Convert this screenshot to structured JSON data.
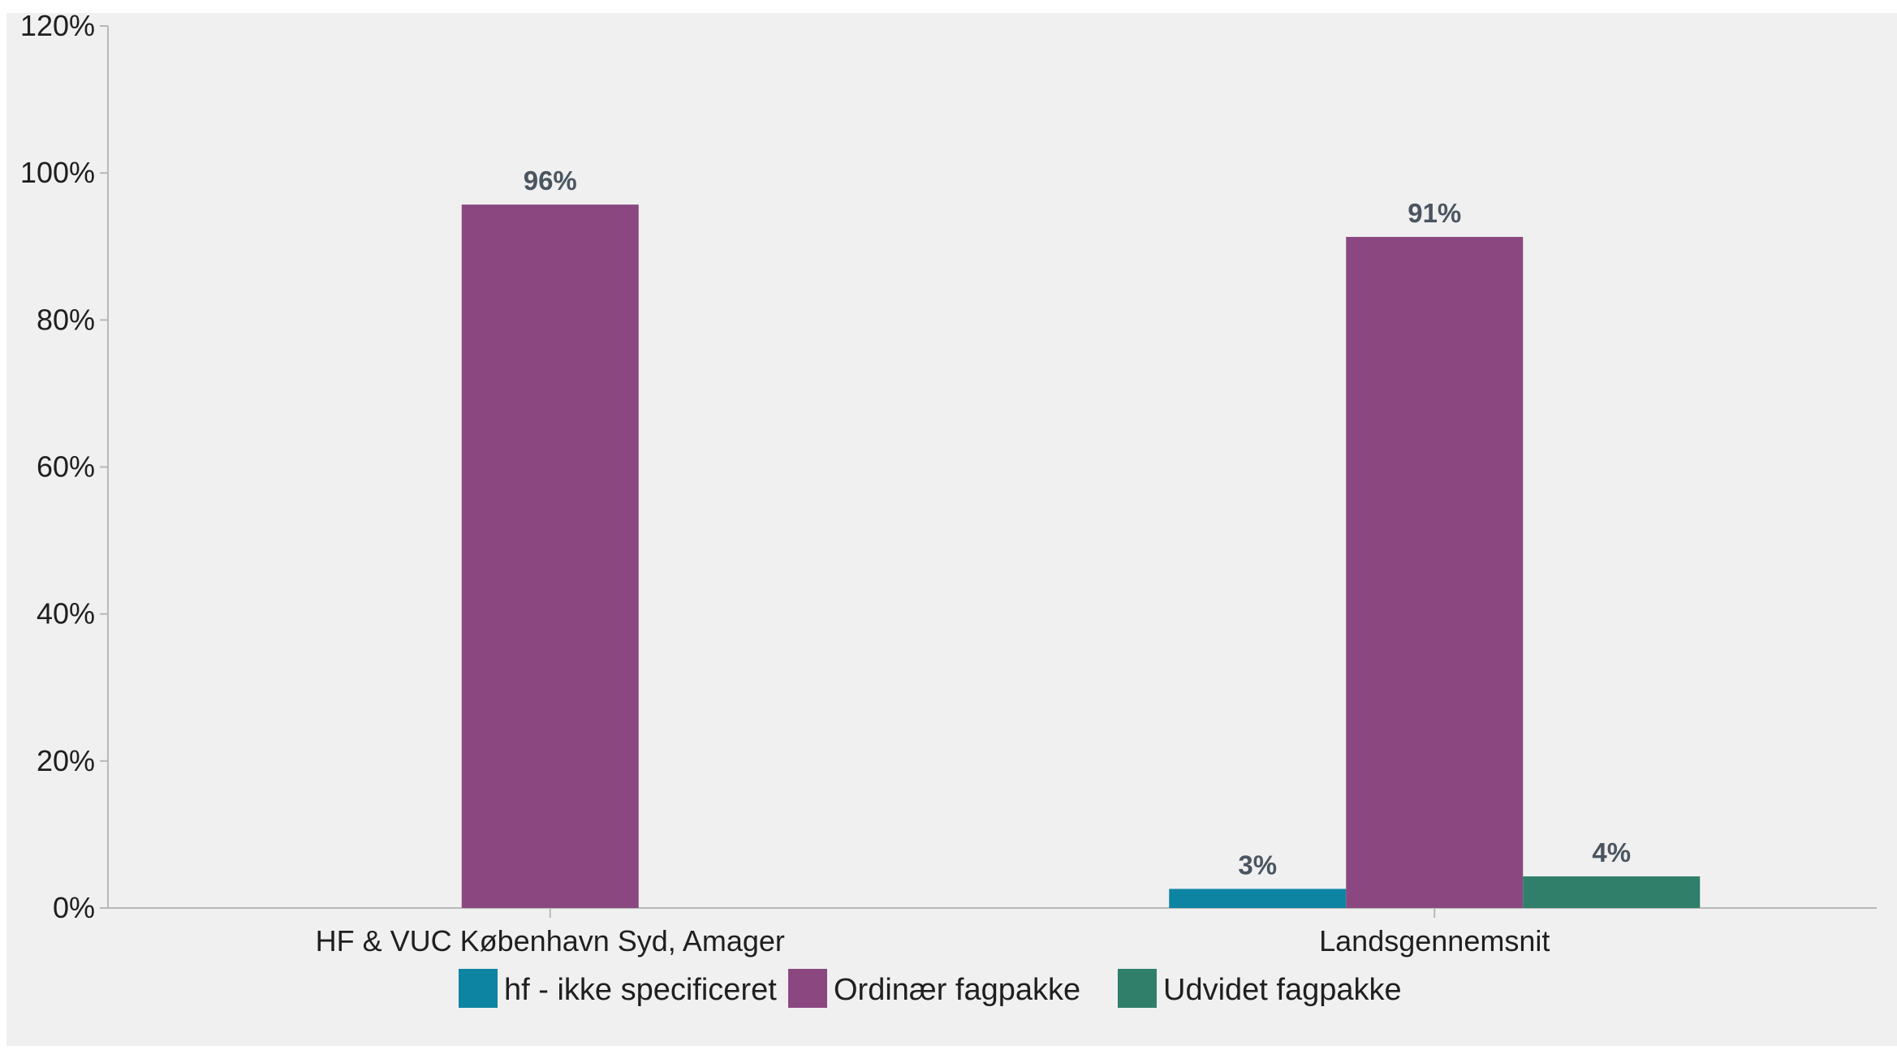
{
  "chart_data": {
    "type": "bar",
    "title": "",
    "xlabel": "",
    "ylabel": "",
    "ylim": [
      0,
      120
    ],
    "yticks": [
      0,
      20,
      40,
      60,
      80,
      100,
      120
    ],
    "ytick_labels": [
      "0%",
      "20%",
      "40%",
      "60%",
      "80%",
      "100%",
      "120%"
    ],
    "grid": false,
    "legend_position": "bottom",
    "categories": [
      "HF & VUC København Syd, Amager",
      "Landsgennemsnit"
    ],
    "series": [
      {
        "name": "hf - ikke specificeret",
        "color": "#0E84A3",
        "values": [
          null,
          2.6
        ],
        "labels": [
          "",
          "3%"
        ]
      },
      {
        "name": "Ordinær fagpakke",
        "color": "#8B4880",
        "values": [
          95.7,
          91.3
        ],
        "labels": [
          "96%",
          "91%"
        ]
      },
      {
        "name": "Udvidet fagpakke",
        "color": "#2F7F6B",
        "values": [
          null,
          4.3
        ],
        "labels": [
          "",
          "4%"
        ]
      }
    ]
  }
}
